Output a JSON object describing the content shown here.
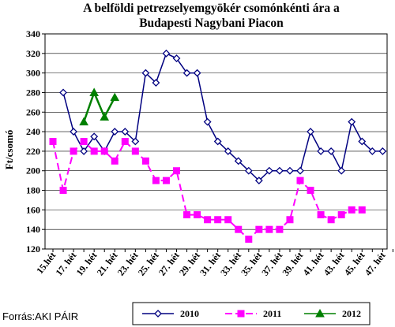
{
  "chart_data": {
    "type": "line",
    "title_lines": [
      "A belföldi petrezselyemgyökér csomónkénti ára a",
      "Budapesti Nagybani Piacon"
    ],
    "ylabel": "Ft/csomó",
    "ylim": [
      120,
      340
    ],
    "yticks": [
      120,
      140,
      160,
      180,
      200,
      220,
      240,
      260,
      280,
      300,
      320,
      340
    ],
    "weeks": [
      15,
      16,
      17,
      18,
      19,
      20,
      21,
      22,
      23,
      24,
      25,
      26,
      27,
      28,
      29,
      30,
      31,
      32,
      33,
      34,
      35,
      36,
      37,
      38,
      39,
      40,
      41,
      42,
      43,
      44,
      45,
      46,
      47,
      48
    ],
    "x_tick_labels": [
      "15.hét",
      "17. hét",
      "19. hét",
      "21. hét",
      "23. hét",
      "25. hét",
      "27. hét",
      "29. hét",
      "31. hét",
      "33. hét",
      "35. hét",
      "37. hét",
      "39. hét",
      "41. hét",
      "43. hét",
      "45. hét",
      "47. hét"
    ],
    "grid": "horizontal",
    "legend_position": "bottom",
    "series": [
      {
        "name": "2010",
        "color": "#000080",
        "marker": "diamond",
        "line": "solid",
        "values": [
          null,
          280,
          240,
          220,
          235,
          220,
          240,
          240,
          230,
          300,
          290,
          320,
          315,
          300,
          300,
          250,
          230,
          220,
          210,
          200,
          190,
          200,
          200,
          200,
          200,
          240,
          220,
          220,
          200,
          250,
          230,
          220,
          220,
          null
        ]
      },
      {
        "name": "2011",
        "color": "#ff00ff",
        "marker": "square",
        "line": "dashed",
        "values": [
          230,
          180,
          220,
          230,
          220,
          220,
          210,
          230,
          220,
          210,
          190,
          190,
          200,
          155,
          155,
          150,
          150,
          150,
          140,
          130,
          140,
          140,
          140,
          150,
          190,
          180,
          155,
          150,
          155,
          160,
          160,
          null,
          null,
          null
        ]
      },
      {
        "name": "2012",
        "color": "#008000",
        "marker": "triangle",
        "line": "solid",
        "values": [
          null,
          null,
          null,
          250,
          280,
          255,
          275,
          null,
          null,
          null,
          null,
          null,
          null,
          null,
          null,
          null,
          null,
          null,
          null,
          null,
          null,
          null,
          null,
          null,
          null,
          null,
          null,
          null,
          null,
          null,
          null,
          null,
          null,
          null
        ]
      }
    ]
  },
  "source": "Forrás:AKI PÁIR"
}
